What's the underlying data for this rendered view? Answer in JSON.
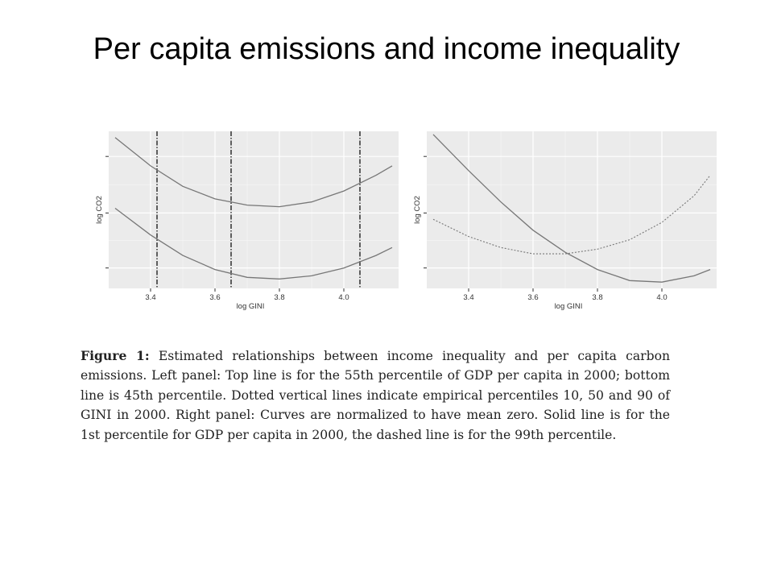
{
  "slide": {
    "title": "Per capita emissions and income inequality"
  },
  "chart_data": [
    {
      "type": "line",
      "panel": "left",
      "xlabel": "log GINI",
      "ylabel": "log CO2",
      "xlim": [
        3.27,
        4.17
      ],
      "ylim": [
        0,
        1
      ],
      "yticks_labeled": false,
      "x_ticks": [
        3.4,
        3.6,
        3.8,
        4.0
      ],
      "x_tick_labels": [
        "3.4",
        "3.6",
        "3.8",
        "4.0"
      ],
      "grid": true,
      "series": [
        {
          "style": "solid",
          "x": [
            3.29,
            3.4,
            3.5,
            3.6,
            3.7,
            3.8,
            3.9,
            4.0,
            4.1,
            4.15
          ],
          "y": [
            0.96,
            0.78,
            0.65,
            0.57,
            0.53,
            0.52,
            0.55,
            0.62,
            0.72,
            0.78
          ]
        },
        {
          "style": "solid",
          "x": [
            3.29,
            3.4,
            3.5,
            3.6,
            3.7,
            3.8,
            3.9,
            4.0,
            4.1,
            4.15
          ],
          "y": [
            0.51,
            0.34,
            0.21,
            0.12,
            0.07,
            0.06,
            0.08,
            0.13,
            0.21,
            0.26
          ]
        }
      ],
      "vlines": [
        {
          "x": 3.42,
          "style": "dashdot"
        },
        {
          "x": 3.65,
          "style": "dashdot"
        },
        {
          "x": 4.05,
          "style": "dashdot"
        }
      ]
    },
    {
      "type": "line",
      "panel": "right",
      "xlabel": "log GINI",
      "ylabel": "log CO2",
      "xlim": [
        3.27,
        4.17
      ],
      "ylim": [
        0,
        1
      ],
      "yticks_labeled": false,
      "x_ticks": [
        3.4,
        3.6,
        3.8,
        4.0
      ],
      "x_tick_labels": [
        "3.4",
        "3.6",
        "3.8",
        "4.0"
      ],
      "grid": true,
      "series": [
        {
          "style": "solid",
          "x": [
            3.29,
            3.4,
            3.5,
            3.6,
            3.7,
            3.8,
            3.9,
            4.0,
            4.1,
            4.15
          ],
          "y": [
            0.98,
            0.75,
            0.55,
            0.37,
            0.23,
            0.12,
            0.05,
            0.04,
            0.08,
            0.12
          ]
        },
        {
          "style": "dashed",
          "x": [
            3.29,
            3.4,
            3.5,
            3.6,
            3.7,
            3.8,
            3.9,
            4.0,
            4.1,
            4.15
          ],
          "y": [
            0.44,
            0.33,
            0.26,
            0.22,
            0.22,
            0.25,
            0.31,
            0.42,
            0.59,
            0.72
          ]
        }
      ]
    }
  ],
  "caption": {
    "label": "Figure 1:",
    "text": "Estimated relationships between income inequality and per capita carbon emissions. Left panel: Top line is for the 55th percentile of GDP per capita in 2000; bottom line is 45th percentile. Dotted vertical lines indicate empirical percentiles 10, 50 and 90 of GINI in 2000. Right panel: Curves are normalized to have mean zero. Solid line is for the 1st percentile for GDP per capita in 2000, the dashed line is for the 99th percentile."
  }
}
